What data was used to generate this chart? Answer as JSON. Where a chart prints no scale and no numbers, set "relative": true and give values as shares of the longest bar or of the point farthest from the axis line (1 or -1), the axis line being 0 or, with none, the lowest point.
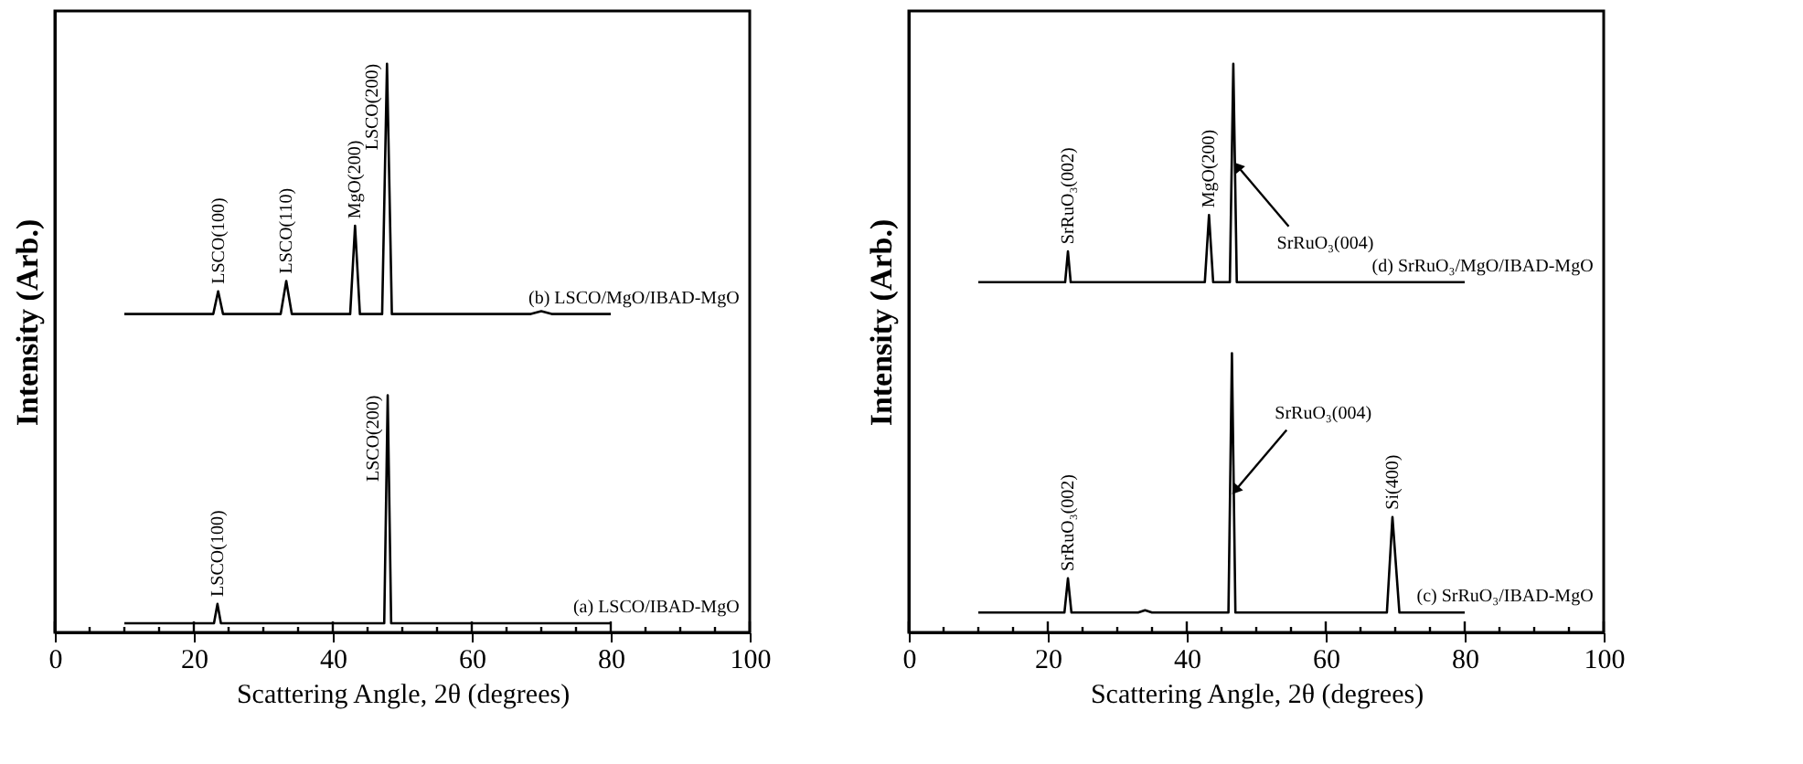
{
  "chart_data": [
    {
      "type": "line",
      "xlabel": "Scattering Angle, 2θ (degrees)",
      "ylabel": "Intensity (Arb.)",
      "relative": true,
      "xlim": [
        0,
        100
      ],
      "xticks": [
        0,
        {
          "value": 5,
          "label": null
        },
        {
          "value": 10,
          "label": null
        },
        {
          "value": 15,
          "label": null
        },
        20,
        {
          "value": 25,
          "label": null
        },
        {
          "value": 30,
          "label": null
        },
        {
          "value": 35,
          "label": null
        },
        40,
        {
          "value": 45,
          "label": null
        },
        {
          "value": 50,
          "label": null
        },
        {
          "value": 55,
          "label": null
        },
        60,
        {
          "value": 65,
          "label": null
        },
        {
          "value": 70,
          "label": null
        },
        {
          "value": 75,
          "label": null
        },
        80,
        {
          "value": 85,
          "label": null
        },
        {
          "value": 90,
          "label": null
        },
        {
          "value": 95,
          "label": null
        },
        100
      ],
      "tick_labels": "x",
      "grid": false,
      "marker": "none",
      "line_style": "solid",
      "series": [
        {
          "name": "(b) LSCO/MgO/IBAD-MgO",
          "color": "#000000",
          "x": [
            10,
            22.8,
            23.5,
            24.2,
            32.5,
            33.3,
            34.1,
            42.5,
            43.2,
            43.9,
            47.1,
            47.8,
            48.5,
            68.5,
            70,
            71.5,
            80
          ],
          "values": [
            0.56,
            0.56,
            0.6,
            0.56,
            0.56,
            0.618,
            0.56,
            0.56,
            0.715,
            0.56,
            0.56,
            1.0,
            0.56,
            0.56,
            0.565,
            0.56,
            0.56
          ]
        },
        {
          "name": "(a) LSCO/IBAD-MgO",
          "color": "#000000",
          "x": [
            10,
            22.9,
            23.4,
            23.9,
            47.4,
            47.9,
            48.4,
            80
          ],
          "values": [
            0.016,
            0.016,
            0.05,
            0.016,
            0.016,
            0.417,
            0.016,
            0.016
          ]
        }
      ],
      "annotations": [
        {
          "text": "LSCO(100)",
          "x": 23.5,
          "y": 0.6
        },
        {
          "text": "LSCO(110)",
          "x": 33.3,
          "y": 0.618
        },
        {
          "text": "MgO(200)",
          "x": 43.2,
          "y": 0.715
        },
        {
          "text": "LSCO(200)",
          "x": 47.8,
          "y": 1.0
        },
        {
          "text": "LSCO(100)",
          "x": 23.4,
          "y": 0.05
        },
        {
          "text": "LSCO(200)",
          "x": 47.9,
          "y": 0.417
        }
      ]
    },
    {
      "type": "line",
      "xlabel": "Scattering Angle, 2θ (degrees)",
      "ylabel": "Intensity (Arb.)",
      "relative": true,
      "xlim": [
        0,
        100
      ],
      "xticks": [
        0,
        {
          "value": 5,
          "label": null
        },
        {
          "value": 10,
          "label": null
        },
        {
          "value": 15,
          "label": null
        },
        20,
        {
          "value": 25,
          "label": null
        },
        {
          "value": 30,
          "label": null
        },
        {
          "value": 35,
          "label": null
        },
        40,
        {
          "value": 45,
          "label": null
        },
        {
          "value": 50,
          "label": null
        },
        {
          "value": 55,
          "label": null
        },
        60,
        {
          "value": 65,
          "label": null
        },
        {
          "value": 70,
          "label": null
        },
        {
          "value": 75,
          "label": null
        },
        80,
        {
          "value": 85,
          "label": null
        },
        {
          "value": 90,
          "label": null
        },
        {
          "value": 95,
          "label": null
        },
        100
      ],
      "tick_labels": "x",
      "grid": false,
      "marker": "none",
      "line_style": "solid",
      "series": [
        {
          "name": "(d) SrRuO₃/MgO/IBAD-MgO",
          "color": "#000000",
          "x": [
            10,
            22.5,
            22.9,
            23.3,
            42.6,
            43.2,
            43.8,
            46.2,
            46.7,
            47.2,
            80
          ],
          "values": [
            0.616,
            0.616,
            0.67,
            0.616,
            0.616,
            0.734,
            0.616,
            0.616,
            1.0,
            0.616,
            0.616
          ]
        },
        {
          "name": "(c) SrRuO₃/IBAD-MgO",
          "color": "#000000",
          "x": [
            10,
            22.4,
            22.9,
            23.4,
            33,
            34,
            35,
            46,
            46.5,
            47,
            68.8,
            69.6,
            70.6,
            80
          ],
          "values": [
            0.035,
            0.035,
            0.095,
            0.035,
            0.035,
            0.039,
            0.035,
            0.035,
            0.491,
            0.035,
            0.035,
            0.203,
            0.035,
            0.035
          ]
        }
      ],
      "annotations": [
        {
          "text": "SrRuO₃(002)",
          "x": 22.9,
          "y": 0.67
        },
        {
          "text": "MgO(200)",
          "x": 43.2,
          "y": 0.734
        },
        {
          "text": "SrRuO₃(004)",
          "x": 47.3,
          "y": 0.82
        },
        {
          "text": "SrRuO₃(002)",
          "x": 22.9,
          "y": 0.095
        },
        {
          "text": "SrRuO₃(004)",
          "x": 47.0,
          "y": 0.25
        },
        {
          "text": "Si(400)",
          "x": 69.6,
          "y": 0.203
        }
      ]
    }
  ]
}
